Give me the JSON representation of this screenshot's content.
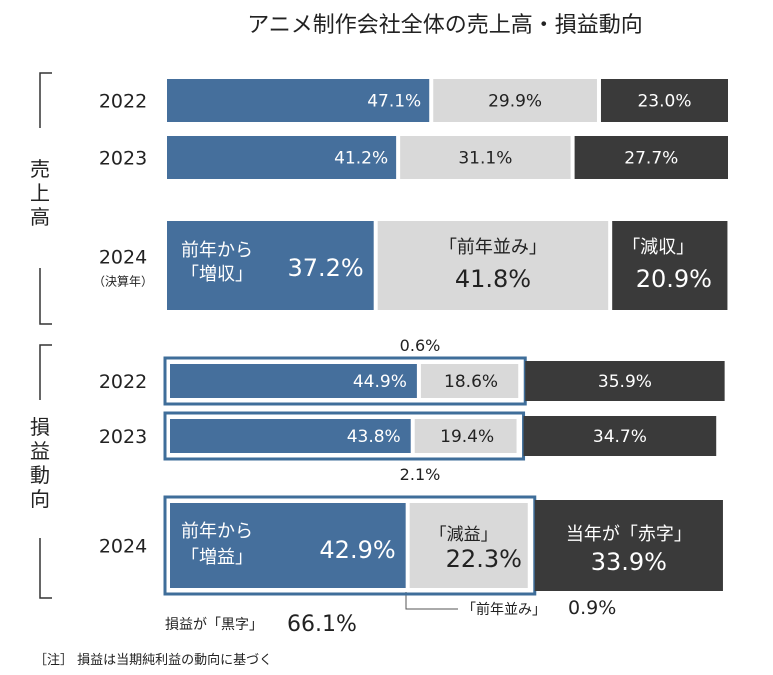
{
  "chart_data": {
    "type": "bar",
    "subtype": "stacked-horizontal-100",
    "title": "アニメ制作会社全体の売上高・損益動向",
    "colors": {
      "increase": "#456f9c",
      "flat": "#d9d9d9",
      "decrease": "#3a3a3a",
      "profit_frame": "#3f6e9a"
    },
    "groups": [
      {
        "name": "売上高",
        "rows": [
          {
            "year": "2022",
            "year_note": "",
            "values": [
              47.1,
              29.9,
              23.0
            ],
            "labels": [
              "47.1%",
              "29.9%",
              "23.0%"
            ]
          },
          {
            "year": "2023",
            "year_note": "",
            "values": [
              41.2,
              31.1,
              27.7
            ],
            "labels": [
              "41.2%",
              "31.1%",
              "27.7%"
            ]
          },
          {
            "year": "2024",
            "year_note": "（決算年）",
            "values": [
              37.2,
              41.8,
              20.9
            ],
            "labels": [
              "37.2%",
              "41.8%",
              "20.9%"
            ],
            "captions": [
              "前年から\n「増収」",
              "「前年並み」",
              "「減収」"
            ]
          }
        ]
      },
      {
        "name": "損益動向",
        "rows": [
          {
            "year": "2022",
            "values": [
              44.9,
              18.6,
              35.9
            ],
            "labels": [
              "44.9%",
              "18.6%",
              "35.9%"
            ],
            "extra_flat_label": "0.6%"
          },
          {
            "year": "2023",
            "values": [
              43.8,
              19.4,
              34.7
            ],
            "labels": [
              "43.8%",
              "19.4%",
              "34.7%"
            ],
            "extra_flat_label": "2.1%"
          },
          {
            "year": "2024",
            "values": [
              42.9,
              22.3,
              33.9
            ],
            "labels": [
              "42.9%",
              "22.3%",
              "33.9%"
            ],
            "captions": [
              "前年から\n「増益」",
              "「減益」",
              "当年が「赤字」"
            ]
          }
        ]
      }
    ],
    "annotations": {
      "profit_black_label": "損益が「黒字」",
      "profit_black_value": "66.1%",
      "flat_label": "「前年並み」",
      "flat_value": "0.9%"
    },
    "note": "［注］ 損益は当期純利益の動向に基づく"
  }
}
